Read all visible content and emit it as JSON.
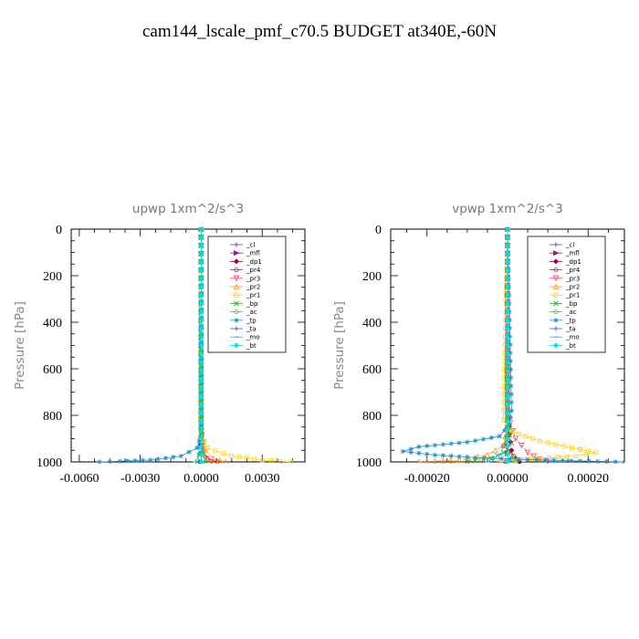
{
  "figure_title": "cam144_lscale_pmf_c70.5  BUDGET at340E,-60N",
  "chart_data": [
    {
      "type": "line",
      "title": "upwp   1xm^2/s^3",
      "ylabel": "Pressure  [hPa]",
      "xlim": [
        -0.0064,
        0.0051
      ],
      "ylim": [
        1000,
        0
      ],
      "y_inverted": true,
      "xticks": [
        -0.006,
        -0.003,
        0.0,
        0.003
      ],
      "xtick_labels": [
        "-0.0060",
        "-0.0030",
        "0.0000",
        "0.0030"
      ],
      "yticks": [
        0,
        200,
        400,
        600,
        800,
        1000
      ],
      "ytick_labels": [
        "0",
        "200",
        "400",
        "600",
        "800",
        "1000"
      ],
      "legend_position": "top-right",
      "series": [
        {
          "name": "_cl",
          "color": "#7f3f98",
          "marker": "+",
          "x": [
            0,
            0,
            0,
            0,
            0
          ],
          "y": [
            0,
            250,
            500,
            750,
            1000
          ]
        },
        {
          "name": "_mfl",
          "color": "#8b1a8b",
          "marker": "triangle-right",
          "x": [
            0,
            0,
            0,
            0,
            0
          ],
          "y": [
            0,
            250,
            500,
            750,
            1000
          ]
        },
        {
          "name": "_dp1",
          "color": "#a00040",
          "marker": "diamond",
          "x": [
            0,
            0,
            0,
            0,
            0
          ],
          "y": [
            0,
            250,
            500,
            750,
            1000
          ]
        },
        {
          "name": "_pr4",
          "color": "#e01030",
          "marker": "circle",
          "x": [
            0,
            0,
            0.0001,
            0.0003,
            0.0008
          ],
          "y": [
            0,
            850,
            950,
            985,
            1000
          ]
        },
        {
          "name": "_pr3",
          "color": "#ff4060",
          "marker": "triangle-down",
          "x": [
            0,
            0,
            0.0001,
            0.0002,
            0.0005
          ],
          "y": [
            0,
            850,
            950,
            985,
            1000
          ]
        },
        {
          "name": "_pr2",
          "color": "#ff9a1a",
          "marker": "triangle-up",
          "x": [
            0,
            0,
            0.0002,
            0.0006,
            0.0012
          ],
          "y": [
            0,
            880,
            950,
            985,
            1000
          ]
        },
        {
          "name": "_pr1",
          "color": "#ffd21a",
          "marker": "square",
          "x": [
            0,
            0,
            0.0003,
            0.0015,
            0.003,
            0.0044
          ],
          "y": [
            0,
            880,
            940,
            975,
            992,
            1000
          ]
        },
        {
          "name": "_bp",
          "color": "#33aa33",
          "marker": "x",
          "x": [
            0,
            0,
            -0.0001,
            -0.0002
          ],
          "y": [
            0,
            900,
            970,
            1000
          ]
        },
        {
          "name": "_ac",
          "color": "#30d030",
          "marker": "circle",
          "x": [
            0,
            0,
            0.0001,
            0.0002
          ],
          "y": [
            0,
            900,
            970,
            1000
          ]
        },
        {
          "name": "_tp",
          "color": "#2090d0",
          "marker": "asterisk",
          "x": [
            0,
            0,
            -0.0002,
            -0.001,
            -0.0025,
            -0.004,
            -0.005
          ],
          "y": [
            0,
            880,
            940,
            975,
            992,
            997,
            1000
          ]
        },
        {
          "name": "_ta",
          "color": "#5050e0",
          "marker": "+",
          "x": [
            0,
            0,
            0,
            0
          ],
          "y": [
            0,
            500,
            900,
            1000
          ]
        },
        {
          "name": "_mo",
          "color": "#30b8e8",
          "marker": "dash",
          "x": [
            0,
            0,
            -0.0001,
            -0.0003
          ],
          "y": [
            0,
            900,
            970,
            1000
          ]
        },
        {
          "name": "_bt",
          "color": "#00e0e0",
          "marker": "diamond",
          "x": [
            0,
            0,
            0,
            0
          ],
          "y": [
            0,
            500,
            900,
            1000
          ]
        }
      ]
    },
    {
      "type": "line",
      "title": "vpwp   1xm^2/s^3",
      "ylabel": "Pressure  [hPa]",
      "xlim": [
        -0.00029,
        0.00029
      ],
      "ylim": [
        1000,
        0
      ],
      "y_inverted": true,
      "xticks": [
        -0.0002,
        0.0,
        0.0002
      ],
      "xtick_labels": [
        "-0.00020",
        "0.00000",
        "0.00020"
      ],
      "yticks": [
        0,
        200,
        400,
        600,
        800,
        1000
      ],
      "ytick_labels": [
        "0",
        "200",
        "400",
        "600",
        "800",
        "1000"
      ],
      "legend_position": "top-right",
      "series": [
        {
          "name": "_cl",
          "color": "#7f3f98",
          "marker": "+",
          "x": [
            0,
            0,
            0,
            0,
            0
          ],
          "y": [
            0,
            250,
            500,
            750,
            1000
          ]
        },
        {
          "name": "_mfl",
          "color": "#8b1a8b",
          "marker": "triangle-right",
          "x": [
            0,
            0,
            0,
            0,
            0
          ],
          "y": [
            0,
            250,
            500,
            750,
            1000
          ]
        },
        {
          "name": "_dp1",
          "color": "#a00040",
          "marker": "diamond",
          "x": [
            0,
            0,
            5e-06,
            1e-05,
            2e-05,
            3e-05
          ],
          "y": [
            0,
            750,
            880,
            950,
            985,
            1000
          ]
        },
        {
          "name": "_pr4",
          "color": "#e01030",
          "marker": "circle",
          "x": [
            0,
            0,
            5e-06,
            -1e-05,
            1.5e-05,
            -5e-06
          ],
          "y": [
            0,
            800,
            880,
            930,
            975,
            1000
          ]
        },
        {
          "name": "_pr3",
          "color": "#ff4060",
          "marker": "triangle-down",
          "x": [
            0,
            0,
            2e-05,
            5e-05,
            8e-05,
            0.0001
          ],
          "y": [
            0,
            800,
            900,
            960,
            990,
            1000
          ]
        },
        {
          "name": "_pr2",
          "color": "#ff9a1a",
          "marker": "triangle-up",
          "x": [
            0,
            0,
            -1e-05,
            -5e-05,
            -0.00012,
            -0.00022
          ],
          "y": [
            0,
            850,
            930,
            970,
            992,
            1000
          ]
        },
        {
          "name": "_pr1",
          "color": "#ffd21a",
          "marker": "square",
          "x": [
            0,
            -1e-05,
            -1e-05,
            1e-05,
            8e-05,
            0.00016,
            0.00022,
            0.00017,
            8e-05,
            2e-05,
            -2e-05
          ],
          "y": [
            0,
            780,
            820,
            870,
            910,
            940,
            960,
            975,
            985,
            993,
            1000
          ]
        },
        {
          "name": "_bp",
          "color": "#33aa33",
          "marker": "x",
          "x": [
            0,
            0,
            1e-05,
            -1e-05,
            -4e-05,
            -0.0001
          ],
          "y": [
            0,
            850,
            920,
            960,
            985,
            1000
          ]
        },
        {
          "name": "_ac",
          "color": "#30d030",
          "marker": "circle",
          "x": [
            0,
            0,
            -5e-06,
            1e-05,
            2e-05
          ],
          "y": [
            0,
            850,
            930,
            970,
            1000
          ]
        },
        {
          "name": "_tp",
          "color": "#2090d0",
          "marker": "asterisk",
          "x": [
            0,
            1e-05,
            5e-06,
            -2e-05,
            -0.0001,
            -0.00022,
            -0.00026,
            -0.00018,
            -8e-05,
            5e-05,
            0.00018,
            0.00029
          ],
          "y": [
            0,
            780,
            840,
            890,
            915,
            935,
            955,
            970,
            982,
            990,
            996,
            1000
          ]
        },
        {
          "name": "_ta",
          "color": "#5050e0",
          "marker": "+",
          "x": [
            0,
            0,
            0,
            0
          ],
          "y": [
            0,
            500,
            900,
            1000
          ]
        },
        {
          "name": "_mo",
          "color": "#30b8e8",
          "marker": "dash",
          "x": [
            0,
            0,
            -2e-05,
            -5e-05
          ],
          "y": [
            0,
            900,
            970,
            1000
          ]
        },
        {
          "name": "_bt",
          "color": "#00e0e0",
          "marker": "diamond",
          "x": [
            0,
            0,
            0,
            0
          ],
          "y": [
            0,
            500,
            900,
            1000
          ]
        }
      ]
    }
  ]
}
